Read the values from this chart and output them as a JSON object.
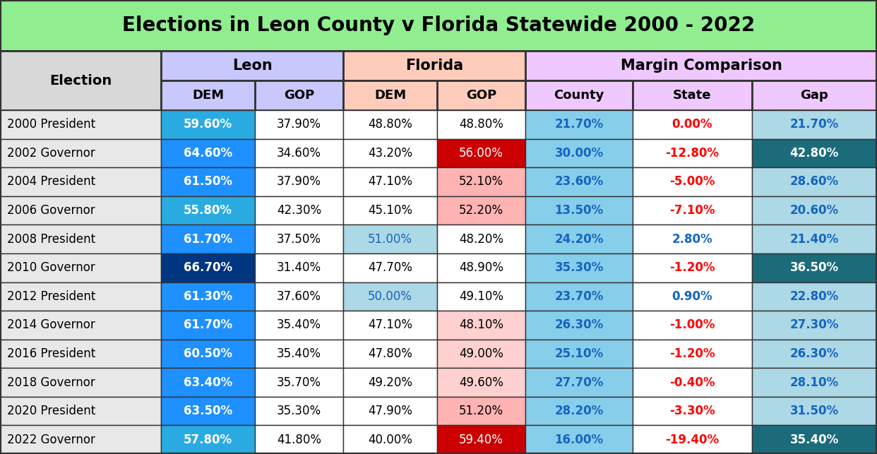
{
  "title": "Elections in Leon County v Florida Statewide 2000 - 2022",
  "title_bg": "#90EE90",
  "header1_bg": [
    "#C8C8FF",
    "#FFCCBB",
    "#EEC8FF"
  ],
  "rows": [
    {
      "election": "2000 President",
      "leon_dem": "59.60%",
      "leon_gop": "37.90%",
      "fl_dem": "48.80%",
      "fl_gop": "48.80%",
      "county": "21.70%",
      "state": "0.00%",
      "gap": "21.70%",
      "leon_dem_bg": "#29ABE2",
      "leon_gop_bg": "#FFFFFF",
      "fl_dem_bg": "#FFFFFF",
      "fl_gop_bg": "#FFFFFF",
      "county_bg": "#87CEEB",
      "state_bg": "#FFFFFF",
      "gap_bg": "#ADD8E6",
      "leon_dem_fc": "#FFFFFF",
      "leon_gop_fc": "#000000",
      "fl_dem_fc": "#000000",
      "fl_gop_fc": "#000000",
      "county_fc": "#1565C0",
      "state_fc": "#FF0000",
      "gap_fc": "#1565C0"
    },
    {
      "election": "2002 Governor",
      "leon_dem": "64.60%",
      "leon_gop": "34.60%",
      "fl_dem": "43.20%",
      "fl_gop": "56.00%",
      "county": "30.00%",
      "state": "-12.80%",
      "gap": "42.80%",
      "leon_dem_bg": "#1E90FF",
      "leon_gop_bg": "#FFFFFF",
      "fl_dem_bg": "#FFFFFF",
      "fl_gop_bg": "#CC0000",
      "county_bg": "#87CEEB",
      "state_bg": "#FFFFFF",
      "gap_bg": "#1B6B7B",
      "leon_dem_fc": "#FFFFFF",
      "leon_gop_fc": "#000000",
      "fl_dem_fc": "#000000",
      "fl_gop_fc": "#FFFFFF",
      "county_fc": "#1565C0",
      "state_fc": "#FF0000",
      "gap_fc": "#FFFFFF"
    },
    {
      "election": "2004 President",
      "leon_dem": "61.50%",
      "leon_gop": "37.90%",
      "fl_dem": "47.10%",
      "fl_gop": "52.10%",
      "county": "23.60%",
      "state": "-5.00%",
      "gap": "28.60%",
      "leon_dem_bg": "#1E90FF",
      "leon_gop_bg": "#FFFFFF",
      "fl_dem_bg": "#FFFFFF",
      "fl_gop_bg": "#FFB3B3",
      "county_bg": "#87CEEB",
      "state_bg": "#FFFFFF",
      "gap_bg": "#ADD8E6",
      "leon_dem_fc": "#FFFFFF",
      "leon_gop_fc": "#000000",
      "fl_dem_fc": "#000000",
      "fl_gop_fc": "#000000",
      "county_fc": "#1565C0",
      "state_fc": "#FF0000",
      "gap_fc": "#1565C0"
    },
    {
      "election": "2006 Governor",
      "leon_dem": "55.80%",
      "leon_gop": "42.30%",
      "fl_dem": "45.10%",
      "fl_gop": "52.20%",
      "county": "13.50%",
      "state": "-7.10%",
      "gap": "20.60%",
      "leon_dem_bg": "#29ABE2",
      "leon_gop_bg": "#FFFFFF",
      "fl_dem_bg": "#FFFFFF",
      "fl_gop_bg": "#FFB3B3",
      "county_bg": "#87CEEB",
      "state_bg": "#FFFFFF",
      "gap_bg": "#ADD8E6",
      "leon_dem_fc": "#FFFFFF",
      "leon_gop_fc": "#000000",
      "fl_dem_fc": "#000000",
      "fl_gop_fc": "#000000",
      "county_fc": "#1565C0",
      "state_fc": "#FF0000",
      "gap_fc": "#1565C0"
    },
    {
      "election": "2008 President",
      "leon_dem": "61.70%",
      "leon_gop": "37.50%",
      "fl_dem": "51.00%",
      "fl_gop": "48.20%",
      "county": "24.20%",
      "state": "2.80%",
      "gap": "21.40%",
      "leon_dem_bg": "#1E90FF",
      "leon_gop_bg": "#FFFFFF",
      "fl_dem_bg": "#ADD8E6",
      "fl_gop_bg": "#FFFFFF",
      "county_bg": "#87CEEB",
      "state_bg": "#FFFFFF",
      "gap_bg": "#ADD8E6",
      "leon_dem_fc": "#FFFFFF",
      "leon_gop_fc": "#000000",
      "fl_dem_fc": "#1565C0",
      "fl_gop_fc": "#000000",
      "county_fc": "#1565C0",
      "state_fc": "#1565C0",
      "gap_fc": "#1565C0"
    },
    {
      "election": "2010 Governor",
      "leon_dem": "66.70%",
      "leon_gop": "31.40%",
      "fl_dem": "47.70%",
      "fl_gop": "48.90%",
      "county": "35.30%",
      "state": "-1.20%",
      "gap": "36.50%",
      "leon_dem_bg": "#003580",
      "leon_gop_bg": "#FFFFFF",
      "fl_dem_bg": "#FFFFFF",
      "fl_gop_bg": "#FFFFFF",
      "county_bg": "#87CEEB",
      "state_bg": "#FFFFFF",
      "gap_bg": "#1B6B7B",
      "leon_dem_fc": "#FFFFFF",
      "leon_gop_fc": "#000000",
      "fl_dem_fc": "#000000",
      "fl_gop_fc": "#000000",
      "county_fc": "#1565C0",
      "state_fc": "#FF0000",
      "gap_fc": "#FFFFFF"
    },
    {
      "election": "2012 President",
      "leon_dem": "61.30%",
      "leon_gop": "37.60%",
      "fl_dem": "50.00%",
      "fl_gop": "49.10%",
      "county": "23.70%",
      "state": "0.90%",
      "gap": "22.80%",
      "leon_dem_bg": "#1E90FF",
      "leon_gop_bg": "#FFFFFF",
      "fl_dem_bg": "#ADD8E6",
      "fl_gop_bg": "#FFFFFF",
      "county_bg": "#87CEEB",
      "state_bg": "#FFFFFF",
      "gap_bg": "#ADD8E6",
      "leon_dem_fc": "#FFFFFF",
      "leon_gop_fc": "#000000",
      "fl_dem_fc": "#1565C0",
      "fl_gop_fc": "#000000",
      "county_fc": "#1565C0",
      "state_fc": "#1565C0",
      "gap_fc": "#1565C0"
    },
    {
      "election": "2014 Governor",
      "leon_dem": "61.70%",
      "leon_gop": "35.40%",
      "fl_dem": "47.10%",
      "fl_gop": "48.10%",
      "county": "26.30%",
      "state": "-1.00%",
      "gap": "27.30%",
      "leon_dem_bg": "#1E90FF",
      "leon_gop_bg": "#FFFFFF",
      "fl_dem_bg": "#FFFFFF",
      "fl_gop_bg": "#FFD0D0",
      "county_bg": "#87CEEB",
      "state_bg": "#FFFFFF",
      "gap_bg": "#ADD8E6",
      "leon_dem_fc": "#FFFFFF",
      "leon_gop_fc": "#000000",
      "fl_dem_fc": "#000000",
      "fl_gop_fc": "#000000",
      "county_fc": "#1565C0",
      "state_fc": "#FF0000",
      "gap_fc": "#1565C0"
    },
    {
      "election": "2016 President",
      "leon_dem": "60.50%",
      "leon_gop": "35.40%",
      "fl_dem": "47.80%",
      "fl_gop": "49.00%",
      "county": "25.10%",
      "state": "-1.20%",
      "gap": "26.30%",
      "leon_dem_bg": "#1E90FF",
      "leon_gop_bg": "#FFFFFF",
      "fl_dem_bg": "#FFFFFF",
      "fl_gop_bg": "#FFD0D0",
      "county_bg": "#87CEEB",
      "state_bg": "#FFFFFF",
      "gap_bg": "#ADD8E6",
      "leon_dem_fc": "#FFFFFF",
      "leon_gop_fc": "#000000",
      "fl_dem_fc": "#000000",
      "fl_gop_fc": "#000000",
      "county_fc": "#1565C0",
      "state_fc": "#FF0000",
      "gap_fc": "#1565C0"
    },
    {
      "election": "2018 Governor",
      "leon_dem": "63.40%",
      "leon_gop": "35.70%",
      "fl_dem": "49.20%",
      "fl_gop": "49.60%",
      "county": "27.70%",
      "state": "-0.40%",
      "gap": "28.10%",
      "leon_dem_bg": "#1E90FF",
      "leon_gop_bg": "#FFFFFF",
      "fl_dem_bg": "#FFFFFF",
      "fl_gop_bg": "#FFD0D0",
      "county_bg": "#87CEEB",
      "state_bg": "#FFFFFF",
      "gap_bg": "#ADD8E6",
      "leon_dem_fc": "#FFFFFF",
      "leon_gop_fc": "#000000",
      "fl_dem_fc": "#000000",
      "fl_gop_fc": "#000000",
      "county_fc": "#1565C0",
      "state_fc": "#FF0000",
      "gap_fc": "#1565C0"
    },
    {
      "election": "2020 President",
      "leon_dem": "63.50%",
      "leon_gop": "35.30%",
      "fl_dem": "47.90%",
      "fl_gop": "51.20%",
      "county": "28.20%",
      "state": "-3.30%",
      "gap": "31.50%",
      "leon_dem_bg": "#1E90FF",
      "leon_gop_bg": "#FFFFFF",
      "fl_dem_bg": "#FFFFFF",
      "fl_gop_bg": "#FFB3B3",
      "county_bg": "#87CEEB",
      "state_bg": "#FFFFFF",
      "gap_bg": "#ADD8E6",
      "leon_dem_fc": "#FFFFFF",
      "leon_gop_fc": "#000000",
      "fl_dem_fc": "#000000",
      "fl_gop_fc": "#000000",
      "county_fc": "#1565C0",
      "state_fc": "#FF0000",
      "gap_fc": "#1565C0"
    },
    {
      "election": "2022 Governor",
      "leon_dem": "57.80%",
      "leon_gop": "41.80%",
      "fl_dem": "40.00%",
      "fl_gop": "59.40%",
      "county": "16.00%",
      "state": "-19.40%",
      "gap": "35.40%",
      "leon_dem_bg": "#29ABE2",
      "leon_gop_bg": "#FFFFFF",
      "fl_dem_bg": "#FFFFFF",
      "fl_gop_bg": "#CC0000",
      "county_bg": "#87CEEB",
      "state_bg": "#FFFFFF",
      "gap_bg": "#1B6B7B",
      "leon_dem_fc": "#FFFFFF",
      "leon_gop_fc": "#000000",
      "fl_dem_fc": "#000000",
      "fl_gop_fc": "#FFFFFF",
      "county_fc": "#1565C0",
      "state_fc": "#FF0000",
      "gap_fc": "#FFFFFF"
    }
  ]
}
